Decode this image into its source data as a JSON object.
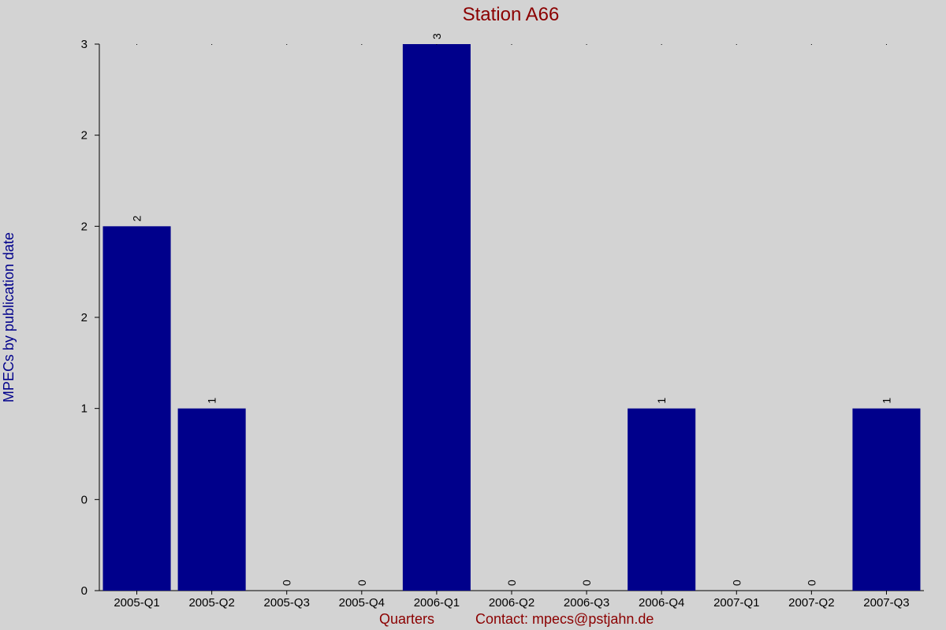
{
  "chart_data": {
    "type": "bar",
    "title": "Station A66",
    "xlabel": "Quarters",
    "ylabel": "MPECs by publication date",
    "footer_contact": "Contact: mpecs@pstjahn.de",
    "categories": [
      "2005-Q1",
      "2005-Q2",
      "2005-Q3",
      "2005-Q4",
      "2006-Q1",
      "2006-Q2",
      "2006-Q3",
      "2006-Q4",
      "2007-Q1",
      "2007-Q2",
      "2007-Q3"
    ],
    "values": [
      2,
      1,
      0,
      0,
      3,
      0,
      0,
      1,
      0,
      0,
      1
    ],
    "ylim": [
      0,
      3
    ],
    "y_ticks": [
      0,
      0.5,
      1,
      1.5,
      2,
      2.5,
      3
    ],
    "y_tick_labels": [
      "0",
      "0",
      "1",
      "2",
      "2",
      "2",
      "3"
    ],
    "bar_color": "#00008b",
    "background": "#d3d3d3",
    "title_color": "#8b0000",
    "ylabel_color": "#00008b",
    "grid": false,
    "legend": "none"
  }
}
